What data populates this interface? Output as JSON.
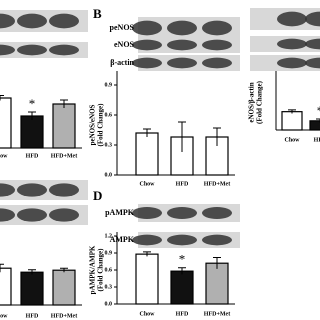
{
  "chart_data": [
    {
      "type": "bar",
      "categories": [
        "Chow",
        "HFD",
        "HFD+Met"
      ],
      "values": [
        1.0,
        0.64,
        0.88
      ],
      "errors": [
        0.05,
        0.08,
        0.08
      ],
      "colors": [
        "#ffffff",
        "#111111",
        "#b0b0b0"
      ],
      "significance": [
        null,
        "*",
        null
      ],
      "ylim": [
        0,
        1.2
      ]
    },
    {
      "type": "bar",
      "panel": "B",
      "blot_labels": [
        "peNOS",
        "eNOS",
        "β-actin"
      ],
      "y_label": [
        "peNOS/eNOS",
        "(Fold Change)"
      ],
      "categories": [
        "Chow",
        "HFD",
        "HFD+Met"
      ],
      "values": [
        0.42,
        0.38,
        0.38
      ],
      "errors": [
        0.04,
        0.15,
        0.09
      ],
      "colors": [
        "#ffffff",
        "#ffffff",
        "#ffffff"
      ],
      "ylim": [
        0,
        1.0
      ],
      "yticks": [
        {
          "value": 0,
          "label": "0.0"
        },
        0.3,
        0.6,
        0.9
      ]
    },
    {
      "type": "bar",
      "y_label": [
        "eNOS/β-actin",
        "(Fold Change)"
      ],
      "categories": [
        "Chow",
        "HFD"
      ],
      "values": [
        1.0,
        0.5
      ],
      "errors": [
        0.1,
        0.1
      ],
      "colors": [
        "#ffffff",
        "#111111"
      ],
      "significance": [
        null,
        "*"
      ],
      "ylim": [
        0,
        3
      ]
    },
    {
      "type": "bar",
      "categories": [
        "Chow",
        "HFD",
        "HFD+Met"
      ],
      "values": [
        0.92,
        0.82,
        0.87
      ],
      "errors": [
        0.1,
        0.06,
        0.05
      ],
      "colors": [
        "#ffffff",
        "#111111",
        "#b0b0b0"
      ],
      "ylim": [
        0,
        1.5
      ]
    },
    {
      "type": "bar",
      "panel": "D",
      "blot_labels": [
        "pAMPK",
        "AMPK"
      ],
      "y_label": [
        "pAMPK/AMPK",
        "(Fold Change)"
      ],
      "categories": [
        "Chow",
        "HFD",
        "HFD+Met"
      ],
      "values": [
        0.88,
        0.58,
        0.72
      ],
      "errors": [
        0.04,
        0.06,
        0.1
      ],
      "colors": [
        "#ffffff",
        "#111111",
        "#b0b0b0"
      ],
      "significance": [
        null,
        "*",
        null
      ],
      "ylim": [
        0,
        1.2
      ],
      "yticks": [
        {
          "value": 0,
          "label": "0.0"
        },
        0.3,
        0.6,
        0.9,
        1.2
      ]
    }
  ]
}
